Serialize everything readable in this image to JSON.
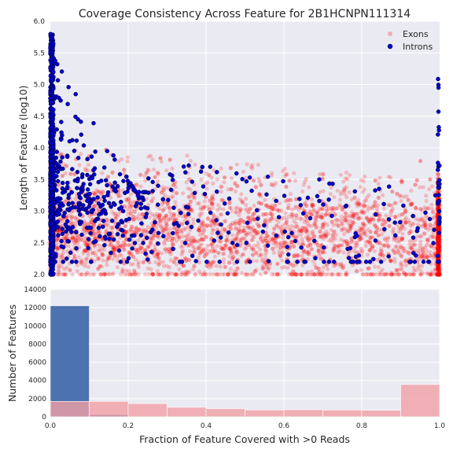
{
  "chart_data": [
    {
      "type": "scatter",
      "title": "Coverage Consistency Across Feature for 2B1HCNPN111314",
      "xlabel": "",
      "ylabel": "Length of Feature (log10)",
      "xlim": [
        0.0,
        1.0
      ],
      "ylim": [
        2.0,
        6.0
      ],
      "yticks": [
        "2.0",
        "2.5",
        "3.0",
        "3.5",
        "4.0",
        "4.5",
        "5.0",
        "5.5",
        "6.0"
      ],
      "grid": true,
      "legend": "top-right",
      "series": [
        {
          "name": "Exons",
          "color": "#ff0000",
          "alpha": 0.2,
          "description": "dense cloud centered near y=2.6; mass at x=0 and x=1; y range ~2.0-4.0",
          "density_profile": {
            "x_at_0_fraction": 0.12,
            "x_at_1_fraction": 0.14,
            "y_mean": 2.65,
            "y_sd": 0.38,
            "y_min": 2.0,
            "y_max": 4.0
          }
        },
        {
          "name": "Introns",
          "color": "#0000cc",
          "edgecolor": "#000033",
          "description": "heavy at x~0 spanning y 2.0-5.8; sparse tail toward x=1 with y 2.2-3.8",
          "density_profile": {
            "x_at_0_fraction": 0.6,
            "y_range_near_0": [
              2.0,
              5.8
            ],
            "tail_y_range": [
              2.2,
              3.8
            ]
          }
        }
      ]
    },
    {
      "type": "bar",
      "title": "",
      "xlabel": "Fraction of Feature Covered with >0 Reads",
      "ylabel": "Number of Features",
      "xlim": [
        0.0,
        1.0
      ],
      "ylim": [
        0,
        14000
      ],
      "xticks": [
        "0.0",
        "0.2",
        "0.4",
        "0.6",
        "0.8",
        "1.0"
      ],
      "yticks": [
        "0",
        "2000",
        "4000",
        "6000",
        "8000",
        "10000",
        "12000",
        "14000"
      ],
      "grid": true,
      "bin_edges": [
        0.0,
        0.1,
        0.2,
        0.3,
        0.4,
        0.5,
        0.6,
        0.7,
        0.8,
        0.9,
        1.0
      ],
      "series": [
        {
          "name": "Introns",
          "color": "#4c72b0",
          "values": [
            12200,
            250,
            50,
            30,
            20,
            15,
            10,
            10,
            10,
            20
          ]
        },
        {
          "name": "Exons",
          "color": "#f0a0a5",
          "alpha": 0.8,
          "values": [
            1700,
            1700,
            1450,
            1050,
            900,
            750,
            780,
            750,
            720,
            3550
          ]
        }
      ]
    }
  ]
}
